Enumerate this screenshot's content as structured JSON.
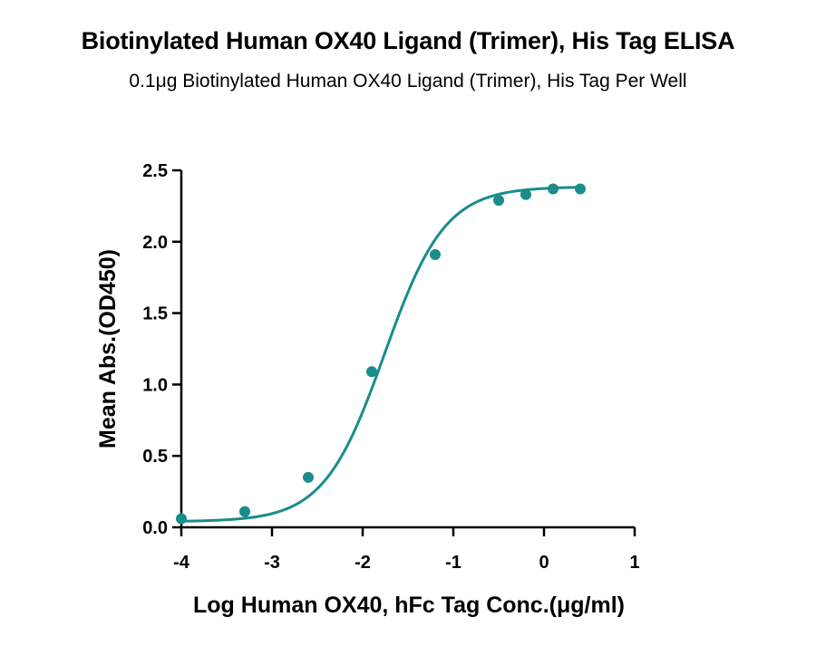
{
  "title": "Biotinylated Human OX40 Ligand (Trimer), His Tag ELISA",
  "subtitle": "0.1μg Biotinylated Human OX40 Ligand (Trimer), His Tag Per Well",
  "colors": {
    "series": "#1a8c8c",
    "axis": "#000000"
  },
  "chart_data": {
    "type": "scatter",
    "title": "Biotinylated Human OX40 Ligand (Trimer), His Tag ELISA",
    "subtitle": "0.1μg Biotinylated Human OX40 Ligand (Trimer), His Tag Per Well",
    "xlabel": "Log Human OX40, hFc Tag Conc.(μg/ml)",
    "ylabel": "Mean Abs.(OD450)",
    "xlim": [
      -4,
      1
    ],
    "ylim": [
      0,
      2.5
    ],
    "xticks": [
      -4,
      -3,
      -2,
      -1,
      0,
      1
    ],
    "xtick_labels": [
      "-4",
      "-3",
      "-2",
      "-1",
      "0",
      "1"
    ],
    "yticks": [
      0,
      0.5,
      1,
      1.5,
      2,
      2.5
    ],
    "ytick_labels": [
      "0.0",
      "0.5",
      "1.0",
      "1.5",
      "2.0",
      "2.5"
    ],
    "grid": false,
    "legend": "none",
    "series": [
      {
        "x": [
          -4,
          -3.3,
          -2.6,
          -1.9,
          -1.2,
          -0.5,
          -0.2,
          0.1,
          0.4
        ],
        "y": [
          0.06,
          0.11,
          0.35,
          1.09,
          1.91,
          2.29,
          2.33,
          2.37,
          2.37
        ],
        "fit": "4PL sigmoid"
      }
    ],
    "fit_params": {
      "bottom": 0.04,
      "top": 2.385,
      "ec50_log": -1.76,
      "hill": 1.3
    }
  }
}
